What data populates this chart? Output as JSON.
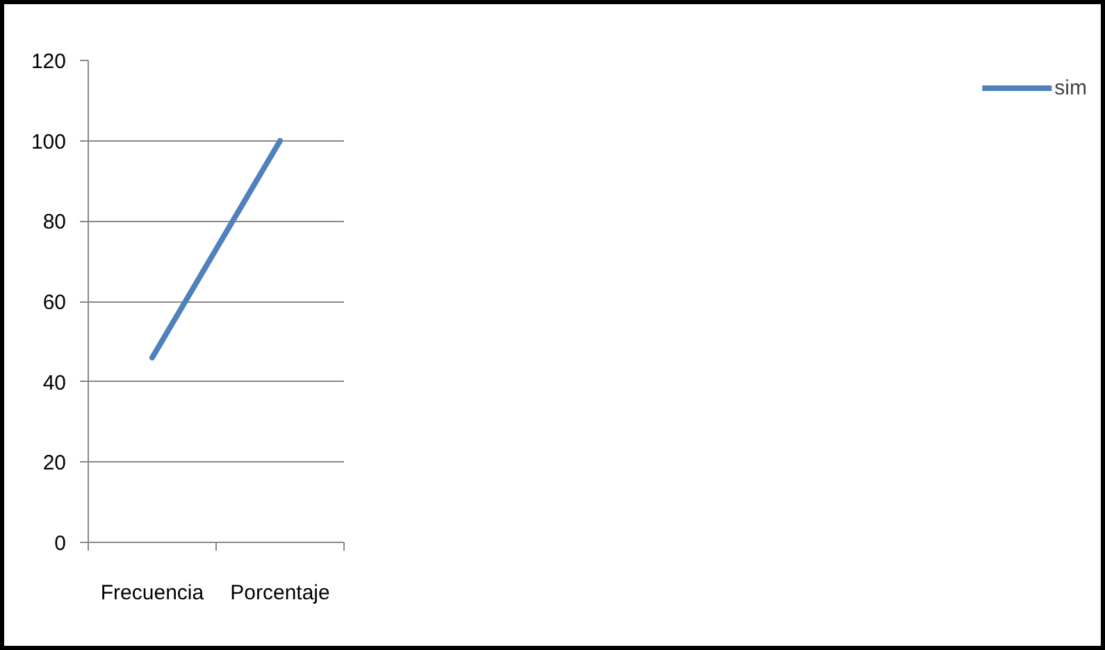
{
  "chart_data": {
    "type": "line",
    "categories": [
      "Frecuencia",
      "Porcentaje"
    ],
    "series": [
      {
        "name": "sim",
        "color": "#4f81bd",
        "values": [
          46,
          100
        ]
      }
    ],
    "ylim": [
      0,
      120
    ],
    "yticks": [
      0,
      20,
      40,
      60,
      80,
      100,
      120
    ],
    "grid": "y",
    "legend": "right",
    "marker": "none",
    "line_style": "solid"
  }
}
